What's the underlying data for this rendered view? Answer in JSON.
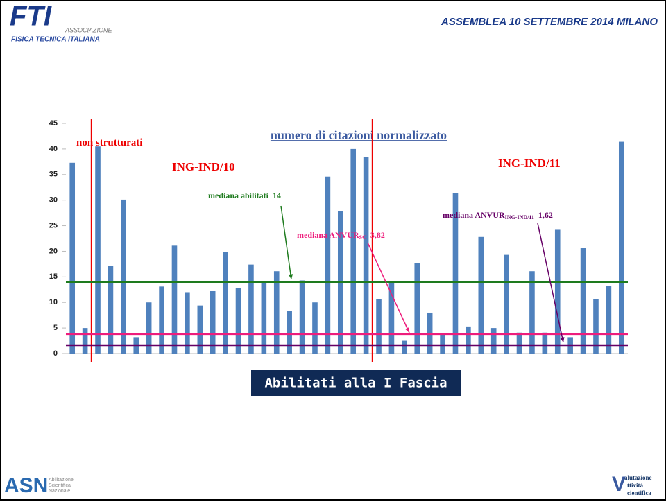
{
  "header": {
    "logo": "FTI",
    "org_top": "ASSOCIAZIONE",
    "org_bottom": "FISICA TECNICA ITALIANA",
    "event": "ASSEMBLEA  10 SETTEMBRE  2014 MILANO"
  },
  "chart_data": {
    "type": "bar",
    "title": "numero di citazioni normalizzato",
    "color": "#4f81bd",
    "categories": [
      null,
      null,
      null,
      null,
      null,
      null,
      null,
      null,
      null,
      null,
      null,
      null,
      null,
      null,
      null,
      null,
      null,
      null,
      null,
      null,
      null,
      null,
      null,
      null,
      null,
      null,
      null,
      null,
      null,
      null,
      null,
      null,
      null,
      null,
      null,
      null,
      null,
      null,
      null,
      null,
      null,
      null,
      null,
      null
    ],
    "values": [
      37.3,
      5,
      40.5,
      17.1,
      30.1,
      3.2,
      10,
      13.1,
      21.1,
      12,
      9.4,
      12.2,
      19.9,
      12.8,
      17.4,
      14,
      16.1,
      8.3,
      14.3,
      10,
      34.6,
      27.9,
      40,
      38.4,
      10.6,
      14.2,
      2.5,
      17.7,
      8,
      3.7,
      31.4,
      5.3,
      22.8,
      5,
      19.3,
      4.1,
      16.1,
      4.1,
      24.2,
      3.2,
      20.6,
      10.7,
      13.2,
      41.4
    ],
    "ylim": [
      0,
      45
    ],
    "yticks": [
      0,
      5,
      10,
      15,
      20,
      25,
      30,
      35,
      40,
      45
    ],
    "grid": false,
    "annotations": [
      "non strutturati",
      "ING-IND/10",
      "ING-IND/11"
    ],
    "median_lines": [
      {
        "name": "mediana abilitati",
        "value": 14,
        "color": "#1e7b1e"
      },
      {
        "name": "mediana ANVUR",
        "sub": "SC",
        "value": 3.82,
        "value_label": "3,82",
        "color": "#ee1d7c"
      },
      {
        "name": "mediana ANVUR",
        "sub": "ING-IND/11",
        "value": 1.62,
        "value_label": "1,62",
        "color": "#660066"
      }
    ]
  },
  "banner": "Abilitati alla I Fascia",
  "footer": {
    "left_logo": "ASN",
    "left_text": [
      "Abilitazione",
      "Scientifica",
      "Nazionale"
    ],
    "right_text": [
      "alutazione",
      "ttività",
      "cientifica"
    ]
  }
}
